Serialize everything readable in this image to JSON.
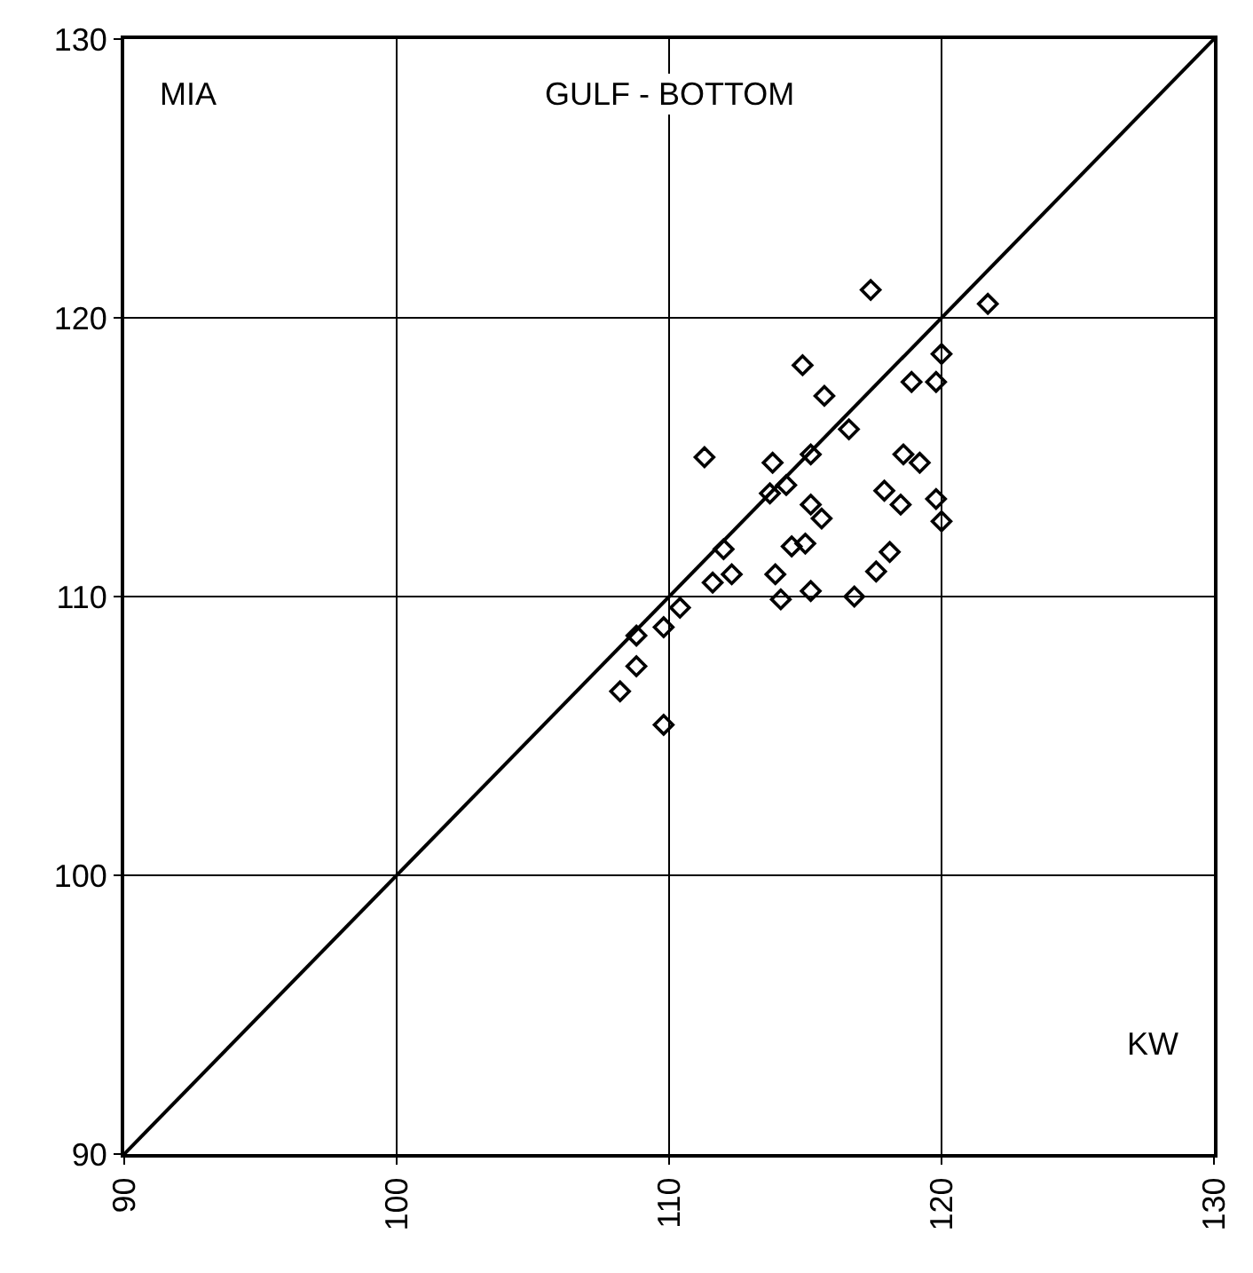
{
  "chart_data": {
    "type": "scatter",
    "annotations": [
      "MIA",
      "GULF - BOTTOM",
      "KW"
    ],
    "xlim": [
      90,
      130
    ],
    "ylim": [
      90,
      130
    ],
    "xticks": [
      90,
      100,
      110,
      120,
      130
    ],
    "yticks": [
      90,
      100,
      110,
      120,
      130
    ],
    "grid": true,
    "marker": "diamond",
    "series": [
      {
        "color": "#000000",
        "x": [
          117.4,
          121.7,
          120.0,
          114.9,
          118.9,
          119.8,
          115.7,
          116.6,
          111.3,
          113.8,
          115.2,
          118.6,
          119.2,
          114.3,
          113.7,
          117.9,
          118.5,
          119.8,
          115.2,
          115.6,
          120.0,
          112.0,
          114.5,
          115.0,
          111.6,
          112.3,
          113.9,
          118.1,
          117.6,
          114.1,
          115.2,
          116.8,
          110.4,
          109.8,
          108.8,
          108.8,
          108.2,
          109.8
        ],
        "values": [
          121.0,
          120.5,
          118.7,
          118.3,
          117.7,
          117.7,
          117.2,
          116.0,
          115.0,
          114.8,
          115.1,
          115.1,
          114.8,
          114.0,
          113.7,
          113.8,
          113.3,
          113.5,
          113.3,
          112.8,
          112.7,
          111.7,
          111.8,
          111.9,
          110.5,
          110.8,
          110.8,
          111.6,
          110.9,
          109.9,
          110.2,
          110.0,
          109.6,
          108.9,
          108.6,
          107.5,
          106.6,
          105.4
        ]
      },
      {
        "type": "line",
        "color": "#000000",
        "marker": "none",
        "line_style": "solid",
        "x": [
          90,
          130
        ],
        "values": [
          90,
          130
        ]
      }
    ]
  }
}
